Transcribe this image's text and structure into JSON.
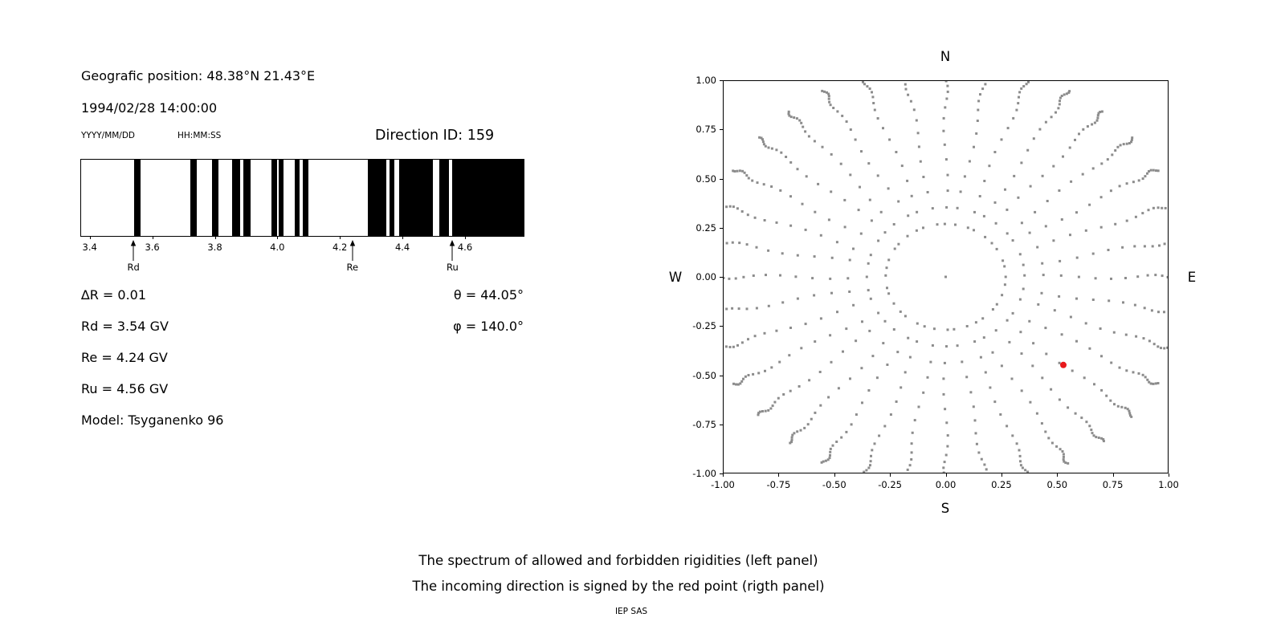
{
  "left_panel": {
    "geo_position": "Geografic position: 48.38°N 21.43°E",
    "datetime": "1994/02/28 14:00:00",
    "date_format": "YYYY/MM/DD",
    "time_format": "HH:MM:SS",
    "direction_id": "Direction ID: 159",
    "params": [
      "∆R = 0.01",
      "Rd = 3.54 GV",
      "Re = 4.24 GV",
      "Ru = 4.56 GV",
      "Model: Tsyganenko 96"
    ],
    "angles": [
      "θ = 44.05°",
      "φ = 140.0°"
    ]
  },
  "chart_data": [
    {
      "type": "bar",
      "panel": "left",
      "description": "Spectrum of allowed (white) and forbidden (black) rigidities in GV",
      "xlim": [
        3.37,
        4.79
      ],
      "xticks": [
        "3.4",
        "3.6",
        "3.8",
        "4.0",
        "4.2",
        "4.4",
        "4.6"
      ],
      "forbidden_bands": [
        [
          3.54,
          3.56
        ],
        [
          3.72,
          3.74
        ],
        [
          3.79,
          3.81
        ],
        [
          3.855,
          3.88
        ],
        [
          3.89,
          3.915
        ],
        [
          3.98,
          4.0
        ],
        [
          4.005,
          4.02
        ],
        [
          4.055,
          4.07
        ],
        [
          4.08,
          4.1
        ],
        [
          4.29,
          4.35
        ],
        [
          4.36,
          4.375
        ],
        [
          4.39,
          4.5
        ],
        [
          4.52,
          4.55
        ],
        [
          4.56,
          4.79
        ]
      ],
      "markers": [
        {
          "label": "Rd",
          "value": 3.54
        },
        {
          "label": "Re",
          "value": 4.24
        },
        {
          "label": "Ru",
          "value": 4.56
        }
      ]
    },
    {
      "type": "scatter",
      "panel": "right",
      "compass": {
        "top": "N",
        "bottom": "S",
        "left": "W",
        "right": "E"
      },
      "xlim": [
        -1,
        1
      ],
      "ylim": [
        -1,
        1
      ],
      "xticks": [
        "-1.00",
        "-0.75",
        "-0.50",
        "-0.25",
        "0.00",
        "0.25",
        "0.50",
        "0.75",
        "1.00"
      ],
      "yticks": [
        "1.00",
        "0.75",
        "0.50",
        "0.25",
        "0.00",
        "-0.25",
        "-0.50",
        "-0.75",
        "-1.00"
      ],
      "rays": {
        "angles_deg": [
          0,
          10,
          20,
          30,
          40,
          50,
          60,
          70,
          80,
          90,
          100,
          110,
          120,
          130,
          140,
          150,
          160,
          170,
          180,
          190,
          200,
          210,
          220,
          230,
          240,
          250,
          260,
          270,
          280,
          290,
          300,
          310,
          320,
          330,
          340,
          350
        ],
        "radii": [
          0.27,
          0.355,
          0.44,
          0.52,
          0.6,
          0.675,
          0.745,
          0.81,
          0.865,
          0.91,
          0.945,
          0.975,
          1.0,
          1.02,
          1.035,
          1.05,
          1.062,
          1.073,
          1.083,
          1.092,
          1.1
        ],
        "jitter_amp": 0.01,
        "clip": 1.0
      },
      "center_dot": true,
      "dot_color": "#8c8c8c",
      "red_point": {
        "x": 0.53,
        "y": -0.45
      },
      "red_color": "#e8191c"
    }
  ],
  "captions": {
    "line1": "The spectrum of allowed and forbidden rigidities (left panel)",
    "line2": "The incoming direction is signed by the red point (rigth panel)",
    "credit": "IEP SAS"
  }
}
